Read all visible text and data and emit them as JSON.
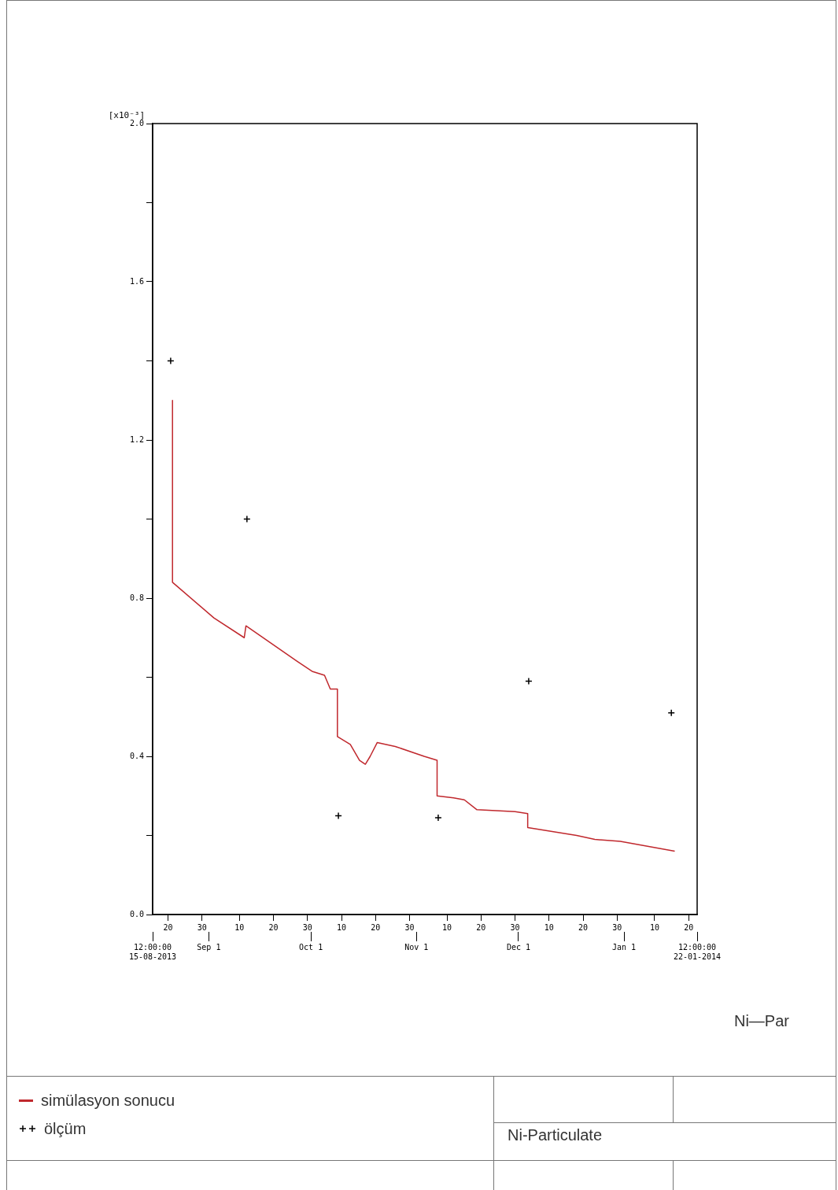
{
  "chart_data": {
    "type": "line",
    "title": "Ni-Particulate",
    "ylabel": "[x10⁻³]",
    "annotations": [
      "Ni—Par"
    ],
    "xlim": [
      "2013-08-15T12:00",
      "2014-01-22T12:00"
    ],
    "xticks": [
      {
        "value": "2013-08-20",
        "label": "20"
      },
      {
        "value": "2013-08-30",
        "label": "30"
      },
      {
        "value": "2013-09-10",
        "label": "10"
      },
      {
        "value": "2013-09-20",
        "label": "20"
      },
      {
        "value": "2013-09-30",
        "label": "30"
      },
      {
        "value": "2013-10-10",
        "label": "10"
      },
      {
        "value": "2013-10-20",
        "label": "20"
      },
      {
        "value": "2013-10-30",
        "label": "30"
      },
      {
        "value": "2013-11-10",
        "label": "10"
      },
      {
        "value": "2013-11-20",
        "label": "20"
      },
      {
        "value": "2013-11-30",
        "label": "30"
      },
      {
        "value": "2013-12-10",
        "label": "10"
      },
      {
        "value": "2013-12-20",
        "label": "20"
      },
      {
        "value": "2013-12-30",
        "label": "30"
      },
      {
        "value": "2014-01-10",
        "label": "10"
      },
      {
        "value": "2014-01-20",
        "label": "20"
      }
    ],
    "x2lim": [
      "2013-08-15T12:00",
      "2014-01-22T12:00"
    ],
    "x2ticks": [
      {
        "value": "2013-08-15T12:00",
        "label": "12:00:00 15-08-2013"
      },
      {
        "value": "2013-09-01",
        "label": "Sep 1"
      },
      {
        "value": "2013-10-01",
        "label": "Oct 1"
      },
      {
        "value": "2013-11-01",
        "label": "Nov 1"
      },
      {
        "value": "2013-12-01",
        "label": "Dec 1"
      },
      {
        "value": "2014-01-01",
        "label": "Jan 1"
      },
      {
        "value": "2014-01-22T12:00",
        "label": "12:00:00 22-01-2014"
      }
    ],
    "ylim": [
      0,
      2.0
    ],
    "yticks": [
      {
        "value": 0,
        "label": "0.0"
      },
      {
        "value": 0.2,
        "label": null
      },
      {
        "value": 0.4,
        "label": "0.4"
      },
      {
        "value": 0.6,
        "label": null
      },
      {
        "value": 0.8,
        "label": "0.8"
      },
      {
        "value": 1.0,
        "label": null
      },
      {
        "value": 1.2,
        "label": "1.2"
      },
      {
        "value": 1.4,
        "label": null
      },
      {
        "value": 1.6,
        "label": "1.6"
      },
      {
        "value": 1.8,
        "label": null
      },
      {
        "value": 2.0,
        "label": "2.0"
      }
    ],
    "legend": "bottom",
    "series": [
      {
        "name": "simülasyon sonucu",
        "color": "#c0282d",
        "marker": "none",
        "x": [
          "2013-08-21T08:00",
          "2013-08-21T08:00",
          "2013-09-02T12:00",
          "2013-09-11T10:00",
          "2013-09-11T22:00",
          "2013-09-27",
          "2013-10-01T08:00",
          "2013-10-05",
          "2013-10-06T17:00",
          "2013-10-08T19:00",
          "2013-10-08T19:00",
          "2013-10-12T14:00",
          "2013-10-15T07:00",
          "2013-10-17",
          "2013-10-18T10:00",
          "2013-10-20T12:00",
          "2013-10-25T19:00",
          "2013-11-03T07:00",
          "2013-11-07T02:00",
          "2013-11-07T02:00",
          "2013-11-11T22:00",
          "2013-11-15T02:00",
          "2013-11-18T19:00",
          "2013-11-30",
          "2013-12-03T17:00",
          "2013-12-03T17:00",
          "2013-12-18T02:00",
          "2013-12-23T10:00",
          "2013-12-30T22:00",
          "2014-01-15T22:00"
        ],
        "values": [
          1.3,
          0.84,
          0.75,
          0.7,
          0.73,
          0.64,
          0.615,
          0.605,
          0.57,
          0.57,
          0.45,
          0.43,
          0.39,
          0.38,
          0.4,
          0.435,
          0.425,
          0.4,
          0.39,
          0.3,
          0.295,
          0.29,
          0.265,
          0.26,
          0.255,
          0.22,
          0.2,
          0.19,
          0.185,
          0.16
        ]
      },
      {
        "type": "scatter",
        "name": "ölçüm",
        "color": "#000000",
        "marker": "cross",
        "x": [
          "2013-08-20T19:00",
          "2013-09-12T05:00",
          "2013-10-09T02:00",
          "2013-11-07T10:00",
          "2013-12-04",
          "2014-01-14T22:00"
        ],
        "values": [
          1.4,
          1.0,
          0.25,
          0.245,
          0.59,
          0.51
        ]
      }
    ]
  }
}
